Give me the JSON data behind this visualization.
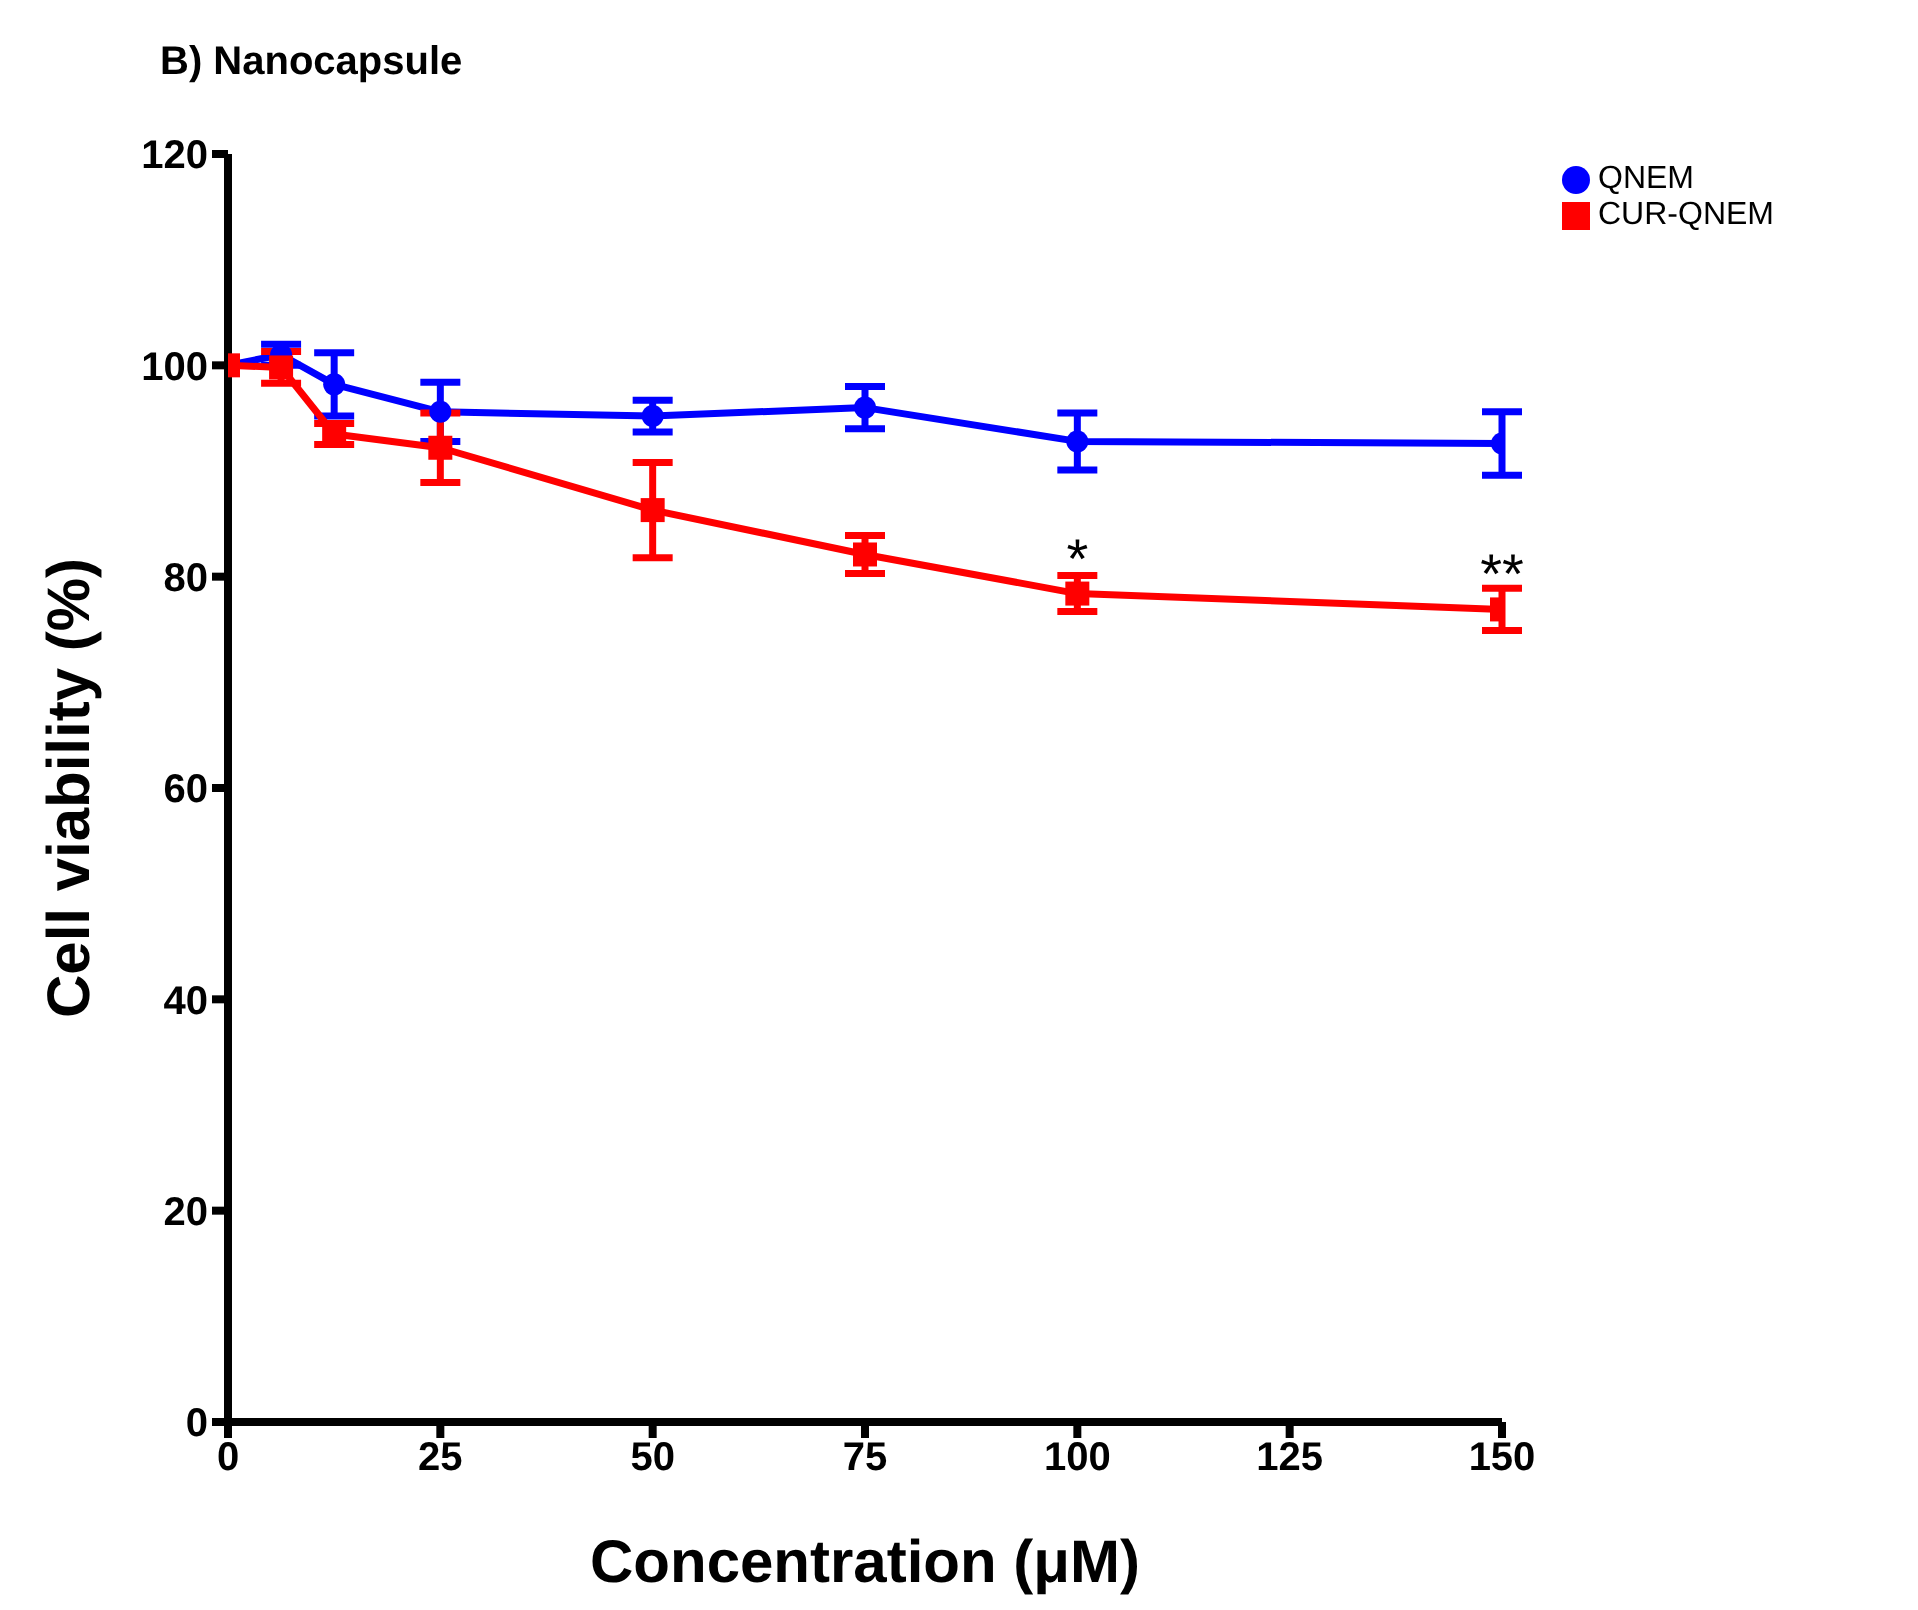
{
  "chart_data": {
    "type": "line",
    "title": "B) Nanocapsule",
    "xlabel": "Concentration (μM)",
    "ylabel": "Cell viability (%)",
    "x": [
      0,
      6.25,
      12.5,
      25,
      50,
      75,
      100,
      150
    ],
    "series": [
      {
        "name": "QNEM",
        "color": "#0000ff",
        "marker": "circle",
        "values": [
          100,
          101,
          98.2,
          95.6,
          95.2,
          96,
          92.8,
          92.6
        ],
        "errors": [
          null,
          1,
          3,
          2.8,
          1.5,
          2,
          2.7,
          3
        ]
      },
      {
        "name": "CUR-QNEM",
        "color": "#ff0000",
        "marker": "square",
        "values": [
          100,
          99.8,
          93.5,
          92.2,
          86.3,
          82.1,
          78.4,
          76.9
        ],
        "errors": [
          null,
          1.5,
          1,
          3.3,
          4.5,
          1.8,
          1.7,
          2
        ]
      }
    ],
    "xlim": [
      0,
      150
    ],
    "xticks": [
      0,
      25,
      50,
      75,
      100,
      125,
      150
    ],
    "ylim": [
      0,
      120
    ],
    "yticks": [
      0,
      20,
      40,
      60,
      80,
      100,
      120
    ],
    "grid": false,
    "legend": "top right",
    "annotations": [
      {
        "text": "*",
        "x": 100,
        "y": 78.4
      },
      {
        "text": "**",
        "x": 150,
        "y": 76.9
      }
    ]
  }
}
